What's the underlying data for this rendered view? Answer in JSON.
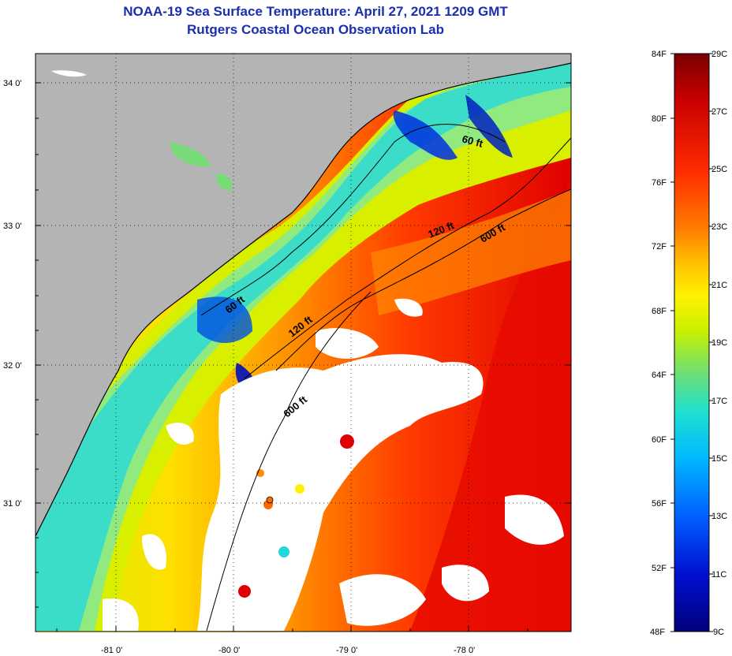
{
  "header": {
    "title": "NOAA-19 Sea Surface Temperature:  April 27, 2021 1209 GMT",
    "subtitle": "Rutgers Coastal Ocean Observation Lab"
  },
  "map": {
    "lat_labels": [
      "34 0'",
      "33 0'",
      "32 0'",
      "31 0'"
    ],
    "lon_labels": [
      "-81 0'",
      "-80 0'",
      "-79 0'",
      "-78 0'"
    ],
    "land_color": "#b4b4b4",
    "cloud_color": "#ffffff",
    "contour_color": "#000000",
    "depth_labels": [
      "60 ft",
      "60 ft",
      "120 ft",
      "120 ft",
      "600 ft",
      "600 ft"
    ]
  },
  "colorbar": {
    "fahrenheit_labels": [
      "84F",
      "80F",
      "76F",
      "72F",
      "68F",
      "64F",
      "60F",
      "56F",
      "52F",
      "48F"
    ],
    "celsius_labels": [
      "29C",
      "27C",
      "25C",
      "23C",
      "21C",
      "19C",
      "17C",
      "15C",
      "13C",
      "11C",
      "9C"
    ],
    "colors_top_to_bottom": [
      "#7a0000",
      "#c80000",
      "#ff2a00",
      "#ff7a00",
      "#ffc800",
      "#fff200",
      "#c8f000",
      "#70e070",
      "#20e0d0",
      "#00b8ff",
      "#0060ff",
      "#0010d0",
      "#00007a"
    ]
  }
}
